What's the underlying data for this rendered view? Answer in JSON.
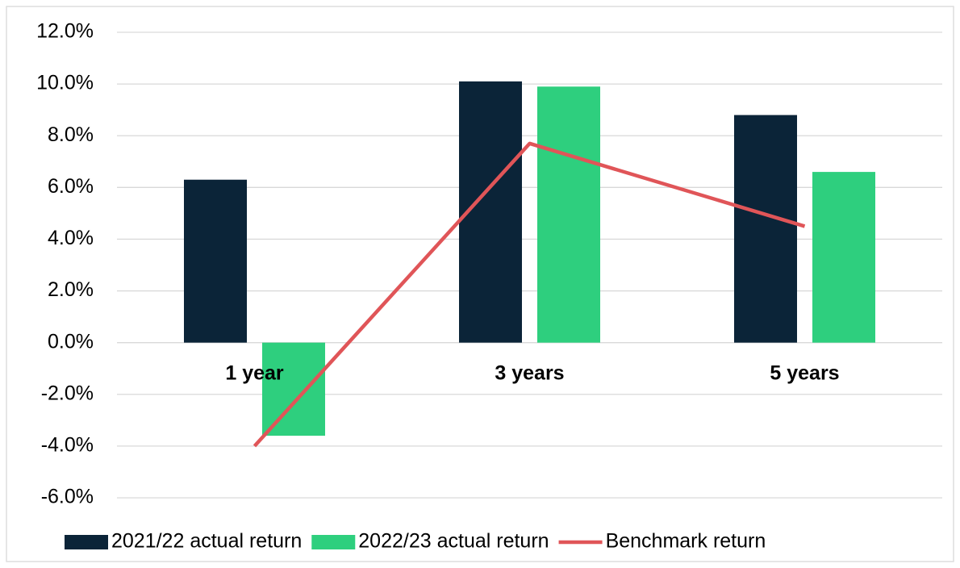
{
  "chart_data": {
    "type": "bar",
    "categories": [
      "1 year",
      "3 years",
      "5 years"
    ],
    "series": [
      {
        "name": "2021/22 actual return",
        "color": "#0b2438",
        "values": [
          6.3,
          10.1,
          8.8
        ]
      },
      {
        "name": "2022/23 actual return",
        "color": "#2ecf7e",
        "values": [
          -3.6,
          9.9,
          6.6
        ]
      },
      {
        "name": "Benchmark return",
        "color": "#e05558",
        "type": "line",
        "values": [
          -4.0,
          7.7,
          4.5
        ]
      }
    ],
    "ylim": [
      -6,
      12
    ],
    "yticks": [
      {
        "value": -6,
        "label": "-6.0%"
      },
      {
        "value": -4,
        "label": "-4.0%"
      },
      {
        "value": -2,
        "label": "-2.0%"
      },
      {
        "value": 0,
        "label": "0.0%"
      },
      {
        "value": 2,
        "label": "2.0%"
      },
      {
        "value": 4,
        "label": "4.0%"
      },
      {
        "value": 6,
        "label": "6.0%"
      },
      {
        "value": 8,
        "label": "8.0%"
      },
      {
        "value": 10,
        "label": "10.0%"
      },
      {
        "value": 12,
        "label": "12.0%"
      }
    ],
    "grid": true,
    "legend": "bottom"
  }
}
